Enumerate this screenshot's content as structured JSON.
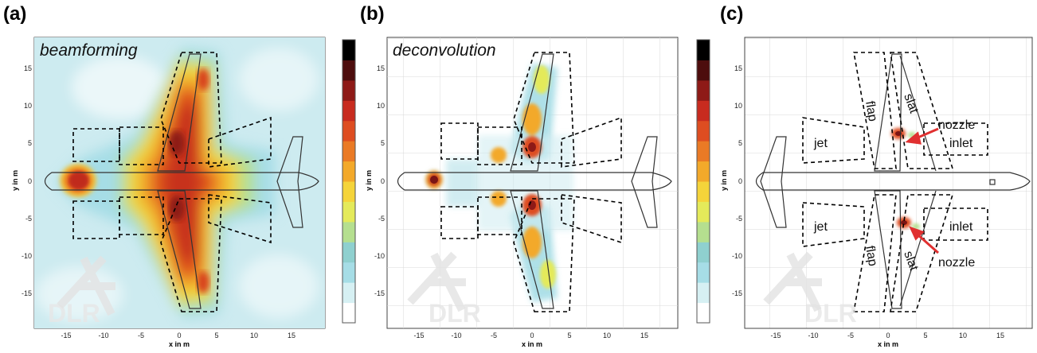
{
  "panels": [
    {
      "letter": "(a)",
      "title": "beamforming",
      "ylabel": "y in m",
      "xlabel": "x in m",
      "xticks": [
        "-15",
        "-10",
        "-5",
        "0",
        "5",
        "10",
        "15"
      ],
      "yticks": [
        "15",
        "10",
        "5",
        "0",
        "-5",
        "-10",
        "-15"
      ],
      "watermark": "DLR"
    },
    {
      "letter": "(b)",
      "title": "deconvolution",
      "ylabel": "y in m",
      "xlabel": "x in m",
      "xticks": [
        "-15",
        "-10",
        "-5",
        "0",
        "5",
        "10",
        "15"
      ],
      "yticks": [
        "15",
        "10",
        "5",
        "0",
        "-5",
        "-10",
        "-15"
      ],
      "watermark": "DLR"
    },
    {
      "letter": "(c)",
      "title": "",
      "ylabel": "y in m",
      "xlabel": "x in m",
      "xticks": [
        "-15",
        "-10",
        "-5",
        "0",
        "5",
        "10",
        "15"
      ],
      "yticks": [
        "15",
        "10",
        "5",
        "0",
        "-5",
        "-10",
        "-15"
      ],
      "watermark": "DLR",
      "labels": {
        "slat_top": "slat",
        "flap_top": "flap",
        "nozzle_top": "nozzle",
        "jet_top": "jet",
        "inlet_top": "inlet",
        "jet_bottom": "jet",
        "inlet_bottom": "inlet",
        "flap_bottom": "flap",
        "slat_bottom": "slat",
        "nozzle_bottom": "nozzle"
      }
    }
  ],
  "colorbar": [
    "#ffffff",
    "#d6f0f3",
    "#a6dde6",
    "#8fd0cf",
    "#b5df8f",
    "#e4ea5a",
    "#f5d43a",
    "#f3a92a",
    "#ea7a25",
    "#de4d21",
    "#c82b1f",
    "#8e1a17",
    "#4d0d0d",
    "#000000"
  ],
  "colors": {
    "annotation_arrow": "#e03030",
    "outline": "#555555"
  }
}
